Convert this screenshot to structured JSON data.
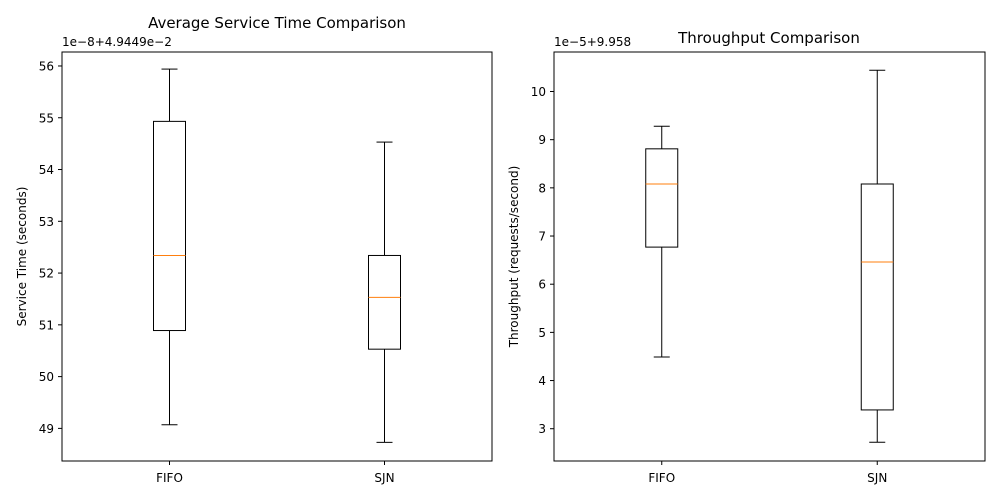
{
  "chart_data": [
    {
      "type": "box",
      "title": "Average Service Time Comparison",
      "xlabel": "",
      "ylabel": "Service Time (seconds)",
      "offset_text": "1e−8+4.9449e−2",
      "categories": [
        "FIFO",
        "SJN"
      ],
      "y_ticks": [
        49,
        50,
        51,
        52,
        53,
        54,
        55,
        56
      ],
      "ylim": [
        48.37,
        56.27
      ],
      "boxes": [
        {
          "category": "FIFO",
          "whisker_low": 49.07,
          "q1": 50.89,
          "median": 52.34,
          "q3": 54.93,
          "whisker_high": 55.94
        },
        {
          "category": "SJN",
          "whisker_low": 48.73,
          "q1": 50.53,
          "median": 51.53,
          "q3": 52.34,
          "whisker_high": 54.53
        }
      ],
      "grid": false,
      "colors": {
        "box": "#000000",
        "median": "#ff7f0e"
      }
    },
    {
      "type": "box",
      "title": "Throughput Comparison",
      "xlabel": "",
      "ylabel": "Throughput (requests/second)",
      "offset_text": "1e−5+9.958",
      "categories": [
        "FIFO",
        "SJN"
      ],
      "y_ticks": [
        3,
        4,
        5,
        6,
        7,
        8,
        9,
        10
      ],
      "ylim": [
        2.33,
        10.82
      ],
      "boxes": [
        {
          "category": "FIFO",
          "whisker_low": 4.49,
          "q1": 6.77,
          "median": 8.08,
          "q3": 8.81,
          "whisker_high": 9.28
        },
        {
          "category": "SJN",
          "whisker_low": 2.72,
          "q1": 3.39,
          "median": 6.46,
          "q3": 8.08,
          "whisker_high": 10.44
        }
      ],
      "grid": false,
      "colors": {
        "box": "#000000",
        "median": "#ff7f0e"
      }
    }
  ]
}
